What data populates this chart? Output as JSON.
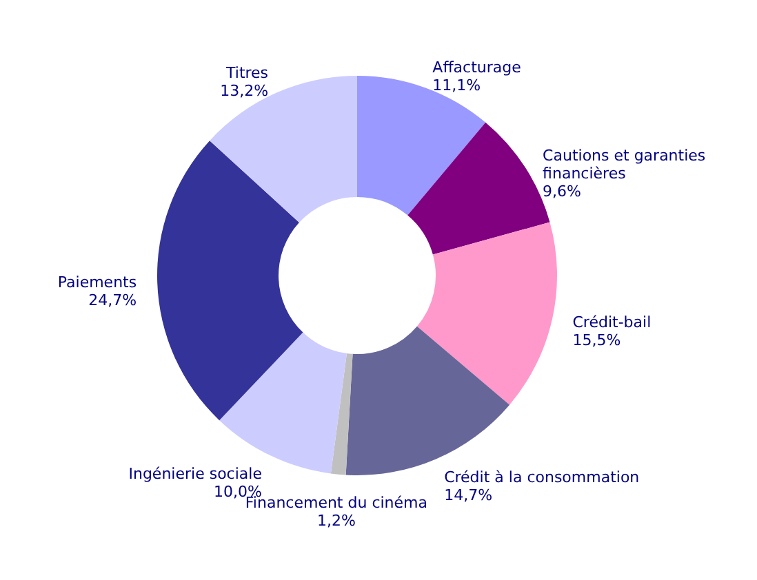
{
  "chart_data": {
    "type": "donut",
    "categories": [
      "Affacturage",
      "Cautions et garanties financières",
      "Crédit-bail",
      "Crédit à la consommation",
      "Financement du cinéma",
      "Ingénierie sociale",
      "Paiements",
      "Titres"
    ],
    "values": [
      11.1,
      9.6,
      15.5,
      14.7,
      1.2,
      10.0,
      24.7,
      13.2
    ],
    "value_labels": [
      "11,1%",
      "9,6%",
      "15,5%",
      "14,7%",
      "1,2%",
      "10,0%",
      "24,7%",
      "13,2%"
    ],
    "colors": [
      "#9999ff",
      "#800080",
      "#ff99cc",
      "#666699",
      "#c0c0c0",
      "#ccccff",
      "#333399",
      "#ccccff"
    ]
  }
}
